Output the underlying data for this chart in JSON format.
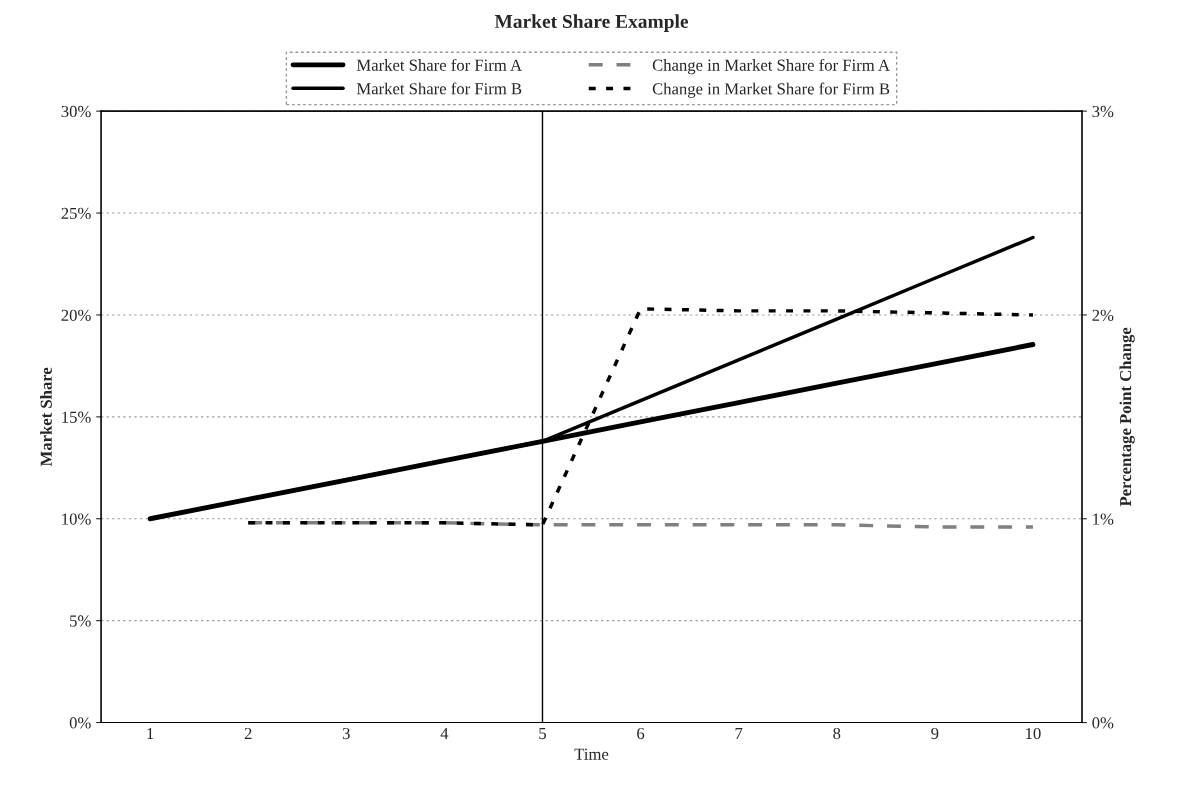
{
  "chart_data": {
    "type": "line",
    "title": "Market Share Example",
    "xlabel": "Time",
    "ylabel": "Market Share",
    "y2label": "Percentage Point Change",
    "categories": [
      "1",
      "2",
      "3",
      "4",
      "5",
      "6",
      "7",
      "8",
      "9",
      "10"
    ],
    "series": [
      {
        "name": "Market Share for Firm A",
        "color": "#000000",
        "line_style": "solid",
        "values": [
          10,
          10.95,
          11.9,
          12.85,
          13.8,
          14.75,
          15.7,
          16.65,
          17.6,
          18.55
        ]
      },
      {
        "name": "Market Share for Firm B",
        "color": "#000000",
        "line_style": "solid",
        "values": [
          10,
          10.95,
          11.9,
          12.85,
          13.8,
          15.8,
          17.8,
          19.8,
          21.8,
          23.8
        ]
      },
      {
        "name": "Change in Market Share for Firm A",
        "color": "#808080",
        "line_style": "dashed",
        "axis": "y2",
        "values": [
          null,
          0.98,
          0.98,
          0.98,
          0.97,
          0.97,
          0.97,
          0.97,
          0.96,
          0.96
        ]
      },
      {
        "name": "Change in Market Share for Firm B",
        "color": "#000000",
        "line_style": "dotted",
        "axis": "y2",
        "values": [
          null,
          0.98,
          0.98,
          0.98,
          0.97,
          2.03,
          2.02,
          2.02,
          2.01,
          2.0
        ]
      }
    ],
    "ylim": [
      0,
      30
    ],
    "yticks": [
      {
        "value": 0,
        "label": "0%"
      },
      {
        "value": 5,
        "label": "5%"
      },
      {
        "value": 10,
        "label": "10%"
      },
      {
        "value": 15,
        "label": "15%"
      },
      {
        "value": 20,
        "label": "20%"
      },
      {
        "value": 25,
        "label": "25%"
      },
      {
        "value": 30,
        "label": "30%"
      }
    ],
    "y2lim": [
      0,
      3
    ],
    "y2ticks": [
      {
        "value": 0,
        "label": "0%"
      },
      {
        "value": 1,
        "label": "1%"
      },
      {
        "value": 2,
        "label": "2%"
      },
      {
        "value": 3,
        "label": "3%"
      }
    ],
    "ref_lines": [
      {
        "axis": "x",
        "value": "5",
        "color": "#000000",
        "line_style": "solid"
      }
    ],
    "grid": "y",
    "legend": "top",
    "marker": "none"
  }
}
